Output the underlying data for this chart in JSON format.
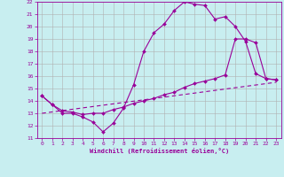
{
  "xlabel": "Windchill (Refroidissement éolien,°C)",
  "background_color": "#c8eef0",
  "grid_color": "#b0b0b0",
  "line_color": "#990099",
  "xlim": [
    -0.5,
    23.5
  ],
  "ylim": [
    11,
    22
  ],
  "xticks": [
    0,
    1,
    2,
    3,
    4,
    5,
    6,
    7,
    8,
    9,
    10,
    11,
    12,
    13,
    14,
    15,
    16,
    17,
    18,
    19,
    20,
    21,
    22,
    23
  ],
  "yticks": [
    11,
    12,
    13,
    14,
    15,
    16,
    17,
    18,
    19,
    20,
    21,
    22
  ],
  "line1_x": [
    0,
    1,
    2,
    3,
    4,
    5,
    6,
    7,
    8,
    9,
    10,
    11,
    12,
    13,
    14,
    15,
    16,
    17,
    18,
    19,
    20,
    21,
    22,
    23
  ],
  "line1_y": [
    14.4,
    13.7,
    13.0,
    13.0,
    12.7,
    12.3,
    11.5,
    12.2,
    13.4,
    15.3,
    18.0,
    19.5,
    20.2,
    21.3,
    22.0,
    21.8,
    21.7,
    20.6,
    20.8,
    20.0,
    18.8,
    16.2,
    15.8,
    15.7
  ],
  "line2_x": [
    0,
    1,
    2,
    3,
    4,
    5,
    6,
    7,
    8,
    9,
    10,
    11,
    12,
    13,
    14,
    15,
    16,
    17,
    18,
    19,
    20,
    21,
    22,
    23
  ],
  "line2_y": [
    14.4,
    13.7,
    13.2,
    13.1,
    12.9,
    13.0,
    13.0,
    13.3,
    13.5,
    13.8,
    14.0,
    14.2,
    14.5,
    14.7,
    15.1,
    15.4,
    15.6,
    15.8,
    16.1,
    19.0,
    19.0,
    18.7,
    15.8,
    15.7
  ],
  "line3_x": [
    0,
    23
  ],
  "line3_y": [
    13.0,
    15.5
  ]
}
